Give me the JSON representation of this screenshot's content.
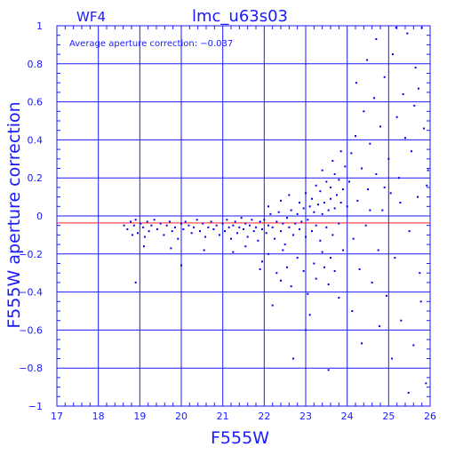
{
  "chart_data": {
    "type": "scatter",
    "chip_label": "WF4",
    "title": "lmc_u63s03",
    "annotation": "Average aperture correction: −0.037",
    "xlabel": "F555W",
    "ylabel": "F555W aperture correction",
    "xlim": [
      17,
      26
    ],
    "ylim": [
      -1,
      1
    ],
    "x_ticks": [
      "17",
      "18",
      "19",
      "20",
      "21",
      "22",
      "23",
      "24",
      "25",
      "26"
    ],
    "y_ticks": [
      "1",
      "0.8",
      "0.6",
      "0.4",
      "0.2",
      "0",
      "−0.2",
      "−0.4",
      "−0.6",
      "−0.8",
      "−1"
    ],
    "grid": true,
    "reference_line": {
      "y": -0.037,
      "color": "#ff2020"
    },
    "point_color": "#0000ee",
    "axis_color": "#1a1aff",
    "series": [
      {
        "points": [
          [
            18.62,
            -0.05
          ],
          [
            18.7,
            -0.07
          ],
          [
            18.78,
            -0.03
          ],
          [
            18.82,
            -0.1
          ],
          [
            18.86,
            -0.05
          ],
          [
            18.9,
            -0.02
          ],
          [
            18.95,
            -0.09
          ],
          [
            19.02,
            -0.04
          ],
          [
            19.08,
            -0.06
          ],
          [
            19.12,
            -0.11
          ],
          [
            19.18,
            -0.03
          ],
          [
            19.22,
            -0.08
          ],
          [
            19.28,
            -0.05
          ],
          [
            19.35,
            -0.02
          ],
          [
            19.42,
            -0.07
          ],
          [
            19.5,
            -0.04
          ],
          [
            19.58,
            -0.1
          ],
          [
            19.65,
            -0.05
          ],
          [
            19.72,
            -0.03
          ],
          [
            19.78,
            -0.08
          ],
          [
            19.85,
            -0.06
          ],
          [
            19.92,
            -0.12
          ],
          [
            20.0,
            -0.04
          ],
          [
            20.05,
            -0.07
          ],
          [
            20.1,
            -0.03
          ],
          [
            20.18,
            -0.05
          ],
          [
            20.25,
            -0.09
          ],
          [
            20.3,
            -0.06
          ],
          [
            20.38,
            -0.02
          ],
          [
            20.45,
            -0.08
          ],
          [
            20.52,
            -0.04
          ],
          [
            20.58,
            -0.11
          ],
          [
            20.65,
            -0.06
          ],
          [
            20.72,
            -0.03
          ],
          [
            20.78,
            -0.07
          ],
          [
            20.85,
            -0.05
          ],
          [
            20.92,
            -0.1
          ],
          [
            21.0,
            -0.04
          ],
          [
            21.05,
            -0.08
          ],
          [
            21.1,
            -0.02
          ],
          [
            21.15,
            -0.06
          ],
          [
            21.2,
            -0.12
          ],
          [
            21.25,
            -0.05
          ],
          [
            21.3,
            -0.03
          ],
          [
            21.35,
            -0.09
          ],
          [
            21.4,
            -0.06
          ],
          [
            21.45,
            -0.01
          ],
          [
            21.5,
            -0.07
          ],
          [
            21.55,
            -0.04
          ],
          [
            21.6,
            -0.11
          ],
          [
            21.65,
            -0.05
          ],
          [
            21.7,
            -0.02
          ],
          [
            21.75,
            -0.08
          ],
          [
            21.8,
            -0.06
          ],
          [
            21.85,
            -0.13
          ],
          [
            21.9,
            -0.03
          ],
          [
            21.95,
            -0.07
          ],
          [
            22.0,
            -0.02
          ],
          [
            22.05,
            -0.09
          ],
          [
            22.1,
            -0.05
          ],
          [
            22.15,
            0.01
          ],
          [
            22.2,
            -0.06
          ],
          [
            22.25,
            -0.12
          ],
          [
            22.3,
            -0.03
          ],
          [
            22.35,
            0.02
          ],
          [
            22.4,
            -0.08
          ],
          [
            22.45,
            -0.04
          ],
          [
            22.5,
            -0.15
          ],
          [
            22.55,
            -0.01
          ],
          [
            22.6,
            -0.06
          ],
          [
            22.65,
            0.03
          ],
          [
            22.7,
            -0.1
          ],
          [
            22.75,
            -0.04
          ],
          [
            22.8,
            0.01
          ],
          [
            22.85,
            -0.07
          ],
          [
            22.9,
            -0.03
          ],
          [
            22.95,
            0.04
          ],
          [
            23.0,
            -0.11
          ],
          [
            23.05,
            -0.02
          ],
          [
            23.1,
            0.05
          ],
          [
            23.15,
            -0.08
          ],
          [
            23.2,
            0.02
          ],
          [
            23.25,
            -0.05
          ],
          [
            23.3,
            0.06
          ],
          [
            23.35,
            -0.13
          ],
          [
            23.4,
            0.01
          ],
          [
            23.45,
            0.07
          ],
          [
            23.5,
            -0.06
          ],
          [
            23.55,
            0.03
          ],
          [
            23.6,
            0.09
          ],
          [
            23.65,
            -0.1
          ],
          [
            23.7,
            0.04
          ],
          [
            23.75,
            0.11
          ],
          [
            23.8,
            -0.04
          ],
          [
            23.85,
            0.07
          ],
          [
            23.9,
            0.14
          ],
          [
            19.1,
            -0.16
          ],
          [
            19.75,
            -0.17
          ],
          [
            20.55,
            -0.18
          ],
          [
            20.0,
            -0.26
          ],
          [
            21.25,
            -0.19
          ],
          [
            21.55,
            -0.16
          ],
          [
            18.9,
            -0.35
          ],
          [
            21.95,
            -0.24
          ],
          [
            22.1,
            -0.2
          ],
          [
            22.3,
            -0.3
          ],
          [
            22.45,
            -0.18
          ],
          [
            22.55,
            -0.27
          ],
          [
            22.65,
            -0.37
          ],
          [
            22.8,
            -0.22
          ],
          [
            22.95,
            -0.29
          ],
          [
            23.05,
            -0.41
          ],
          [
            23.1,
            -0.52
          ],
          [
            23.2,
            -0.25
          ],
          [
            23.25,
            -0.33
          ],
          [
            23.4,
            -0.19
          ],
          [
            23.45,
            -0.27
          ],
          [
            23.55,
            -0.36
          ],
          [
            23.6,
            -0.22
          ],
          [
            23.7,
            -0.29
          ],
          [
            23.8,
            -0.43
          ],
          [
            23.9,
            -0.18
          ],
          [
            22.2,
            -0.47
          ],
          [
            22.7,
            -0.75
          ],
          [
            23.0,
            -0.6
          ],
          [
            23.55,
            -0.81
          ],
          [
            21.9,
            -0.28
          ],
          [
            22.4,
            -0.34
          ],
          [
            22.1,
            0.05
          ],
          [
            22.4,
            0.08
          ],
          [
            22.6,
            0.11
          ],
          [
            22.85,
            0.07
          ],
          [
            23.0,
            0.12
          ],
          [
            23.15,
            0.09
          ],
          [
            23.25,
            0.16
          ],
          [
            23.35,
            0.13
          ],
          [
            23.5,
            0.18
          ],
          [
            23.6,
            0.15
          ],
          [
            23.7,
            0.22
          ],
          [
            23.8,
            0.19
          ],
          [
            23.95,
            0.26
          ],
          [
            23.4,
            0.24
          ],
          [
            23.65,
            0.29
          ],
          [
            23.85,
            0.34
          ],
          [
            24.0,
            0.05
          ],
          [
            24.05,
            0.18
          ],
          [
            24.1,
            0.33
          ],
          [
            24.15,
            -0.12
          ],
          [
            24.2,
            0.42
          ],
          [
            24.25,
            0.08
          ],
          [
            24.3,
            -0.28
          ],
          [
            24.35,
            0.25
          ],
          [
            24.4,
            0.55
          ],
          [
            24.45,
            -0.05
          ],
          [
            24.5,
            0.14
          ],
          [
            24.55,
            0.38
          ],
          [
            24.6,
            -0.35
          ],
          [
            24.65,
            0.62
          ],
          [
            24.7,
            0.22
          ],
          [
            24.75,
            -0.18
          ],
          [
            24.8,
            0.47
          ],
          [
            24.85,
            0.03
          ],
          [
            24.9,
            0.73
          ],
          [
            24.95,
            -0.42
          ],
          [
            25.0,
            0.3
          ],
          [
            25.05,
            0.12
          ],
          [
            25.1,
            0.85
          ],
          [
            25.15,
            -0.22
          ],
          [
            25.2,
            0.52
          ],
          [
            25.25,
            0.2
          ],
          [
            25.3,
            -0.55
          ],
          [
            25.35,
            0.64
          ],
          [
            25.4,
            0.41
          ],
          [
            25.45,
            0.96
          ],
          [
            25.5,
            -0.08
          ],
          [
            25.55,
            0.34
          ],
          [
            25.6,
            -0.68
          ],
          [
            25.65,
            0.78
          ],
          [
            25.7,
            0.1
          ],
          [
            25.75,
            -0.3
          ],
          [
            25.8,
            0.99
          ],
          [
            25.85,
            0.46
          ],
          [
            25.9,
            -0.88
          ],
          [
            25.95,
            0.24
          ],
          [
            24.12,
            -0.5
          ],
          [
            24.35,
            -0.67
          ],
          [
            24.55,
            0.03
          ],
          [
            24.78,
            -0.58
          ],
          [
            24.9,
            0.15
          ],
          [
            25.08,
            -0.75
          ],
          [
            25.28,
            0.07
          ],
          [
            25.48,
            -0.93
          ],
          [
            25.62,
            0.58
          ],
          [
            25.78,
            -0.45
          ],
          [
            25.92,
            0.16
          ],
          [
            24.22,
            0.7
          ],
          [
            24.48,
            0.82
          ],
          [
            24.7,
            0.93
          ],
          [
            25.18,
            0.99
          ],
          [
            25.72,
            0.67
          ]
        ]
      }
    ]
  }
}
